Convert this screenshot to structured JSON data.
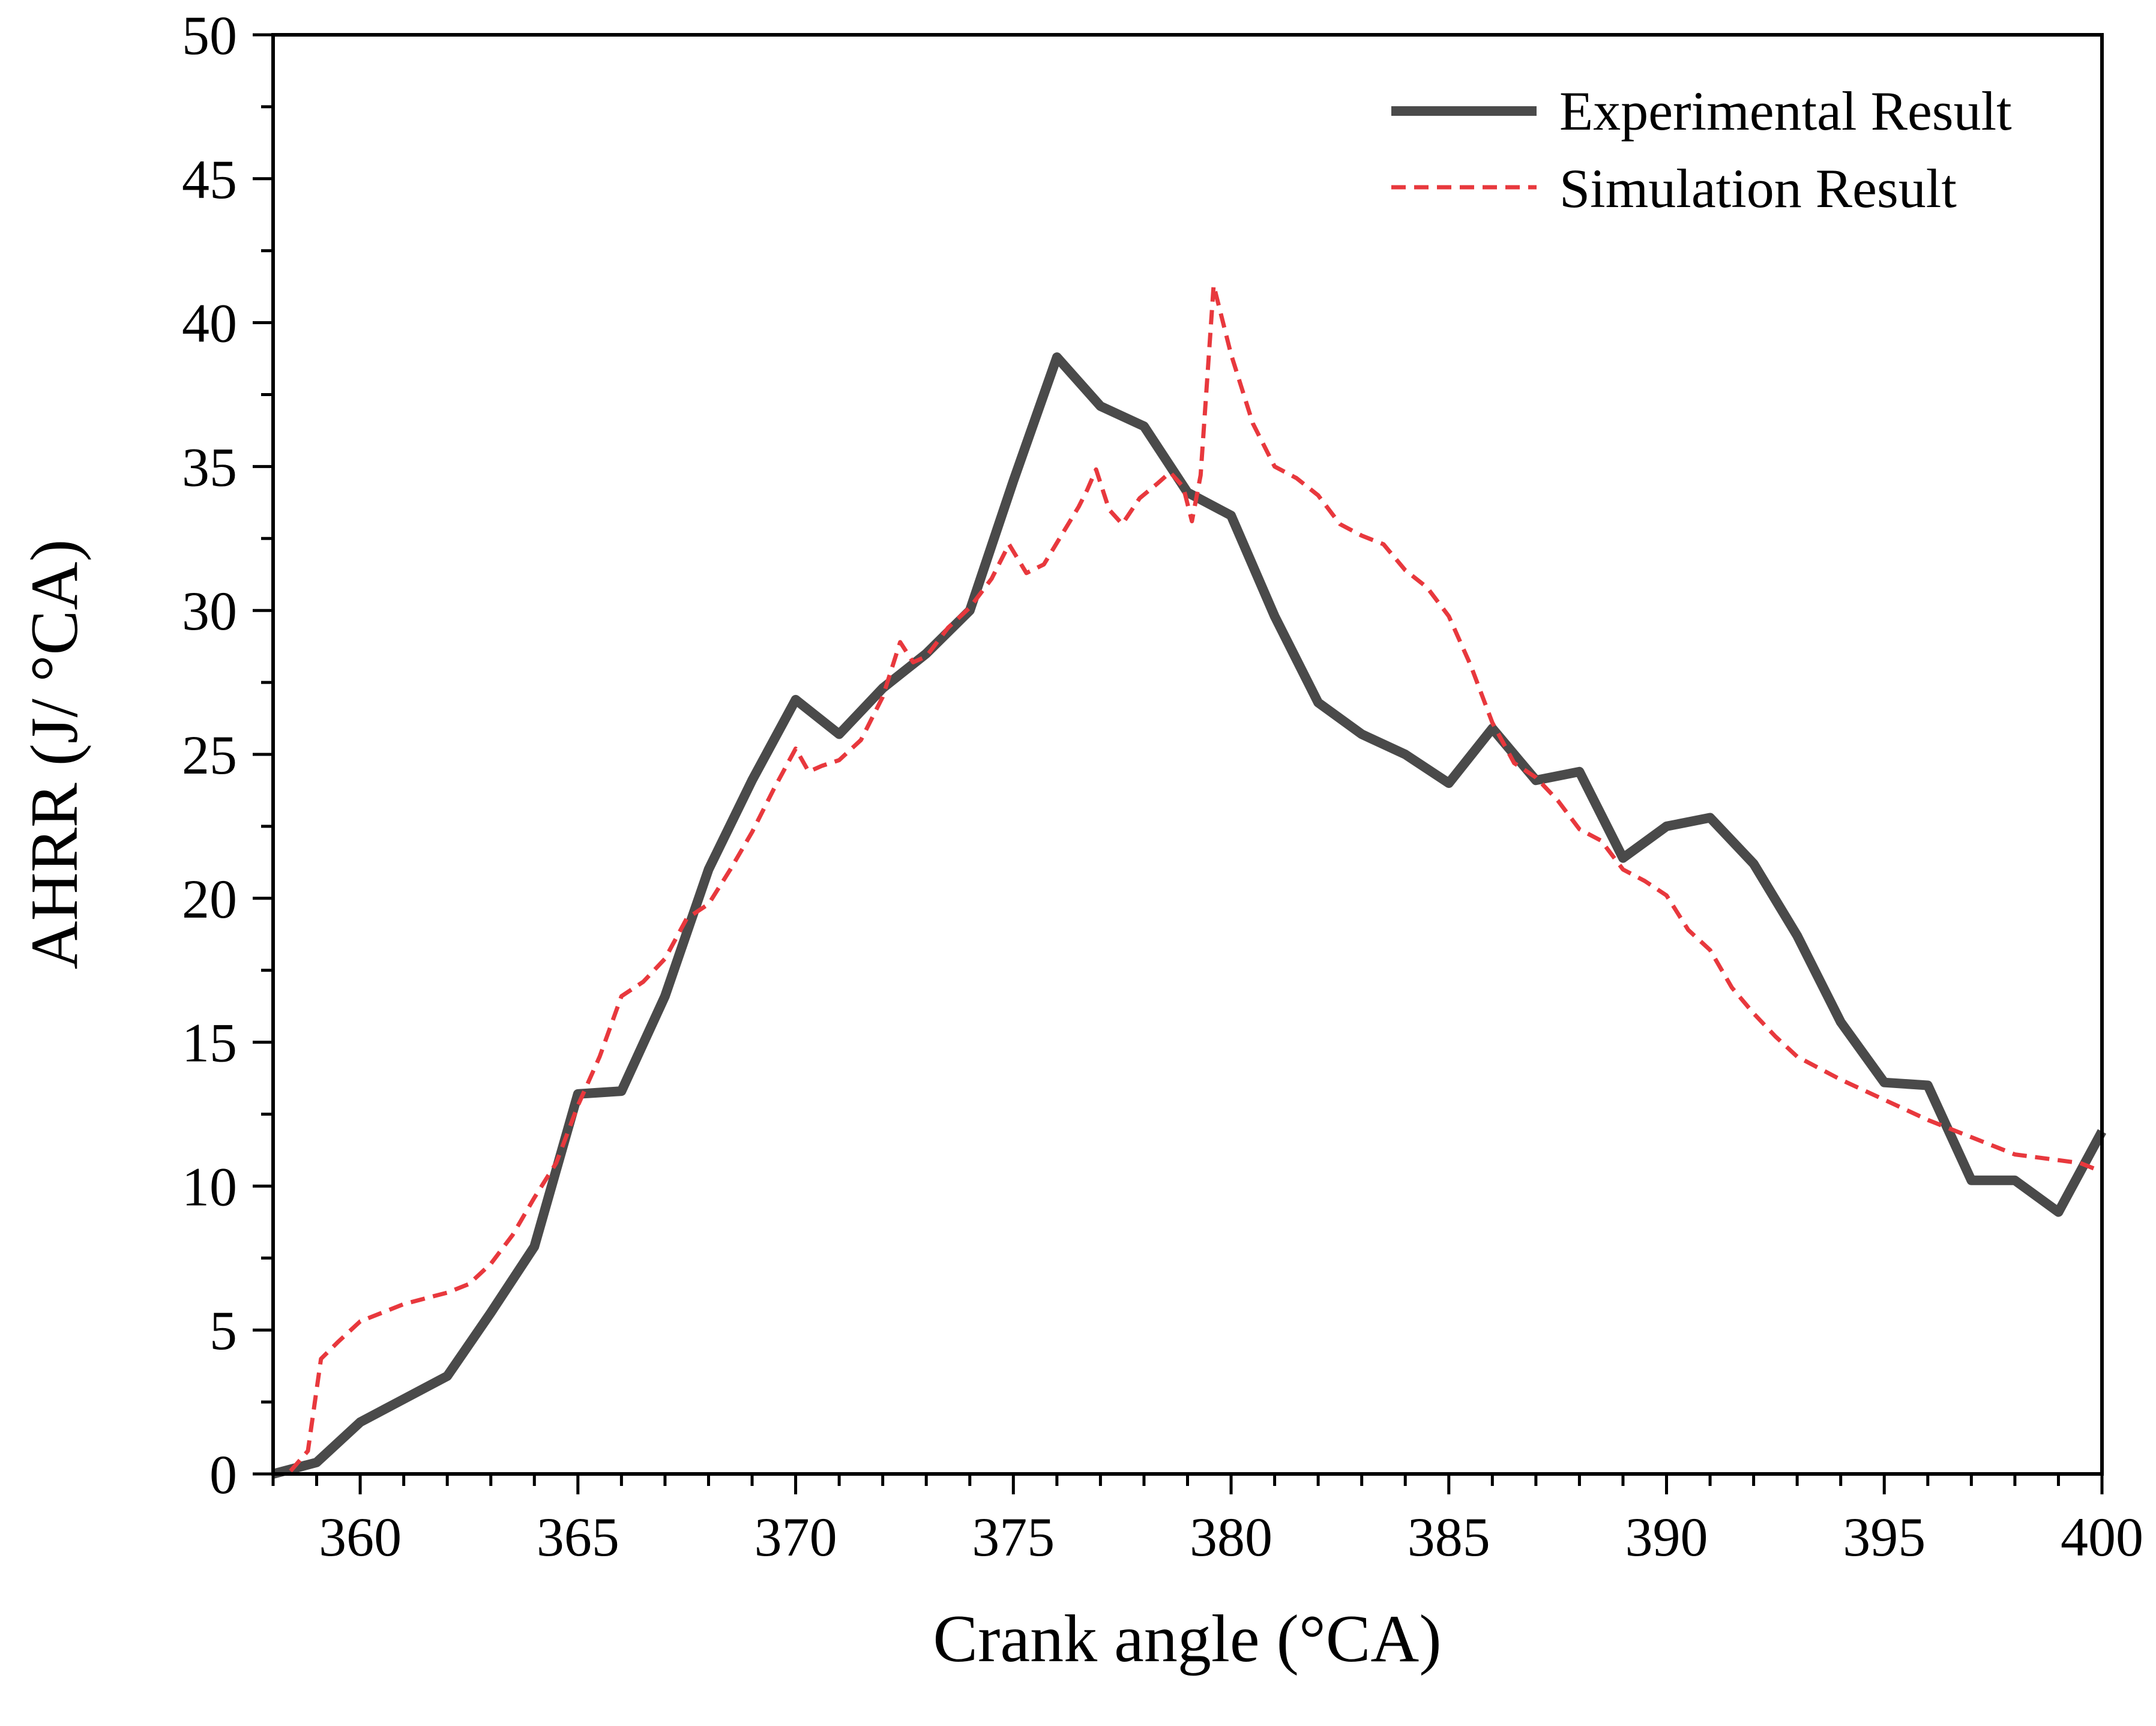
{
  "chart_data": {
    "type": "line",
    "title": "",
    "xlabel": "Crank angle (°CA)",
    "ylabel": "AHRR (J/ °CA)",
    "xlim": [
      358,
      400
    ],
    "ylim": [
      0,
      50
    ],
    "x_ticks": [
      360,
      365,
      370,
      375,
      380,
      385,
      390,
      395,
      400
    ],
    "y_ticks": [
      0,
      5,
      10,
      15,
      20,
      25,
      30,
      35,
      40,
      45,
      50
    ],
    "x_tick_labels": [
      "360",
      "365",
      "370",
      "375",
      "380",
      "385",
      "390",
      "395",
      "400"
    ],
    "y_tick_labels": [
      "0",
      "5",
      "10",
      "15",
      "20",
      "25",
      "30",
      "35",
      "40",
      "45",
      "50"
    ],
    "legend_position": "top-right",
    "grid": false,
    "series": [
      {
        "name": "Experimental Result",
        "color": "#4a4a4a",
        "style": "solid",
        "x": [
          358,
          359,
          360,
          361,
          362,
          363,
          364,
          365,
          366,
          367,
          368,
          369,
          370,
          371,
          372,
          373,
          374,
          375,
          376,
          377,
          378,
          379,
          380,
          381,
          382,
          383,
          384,
          385,
          386,
          387,
          388,
          389,
          390,
          391,
          392,
          393,
          394,
          395,
          396,
          397,
          398,
          399,
          400
        ],
        "y": [
          0,
          0.4,
          1.8,
          2.6,
          3.4,
          5.6,
          7.9,
          13.2,
          13.3,
          16.6,
          21.0,
          24.1,
          26.9,
          25.7,
          27.3,
          28.5,
          30.0,
          34.5,
          38.8,
          37.1,
          36.4,
          34.1,
          33.3,
          29.8,
          26.8,
          25.7,
          25.0,
          24.0,
          25.9,
          24.1,
          24.4,
          21.4,
          22.5,
          22.8,
          21.2,
          18.7,
          15.7,
          13.6,
          13.5,
          10.2,
          10.2,
          9.1,
          11.9
        ]
      },
      {
        "name": "Simulation Result",
        "color": "#e8383d",
        "style": "dashed",
        "x": [
          358.4,
          358.8,
          359.1,
          359.5,
          360,
          360.5,
          361,
          361.5,
          362,
          362.5,
          363,
          363.5,
          364,
          364.5,
          365,
          365.5,
          366,
          366.5,
          367,
          367.5,
          368,
          368.5,
          369,
          369.5,
          370,
          370.3,
          370.6,
          371,
          371.5,
          372,
          372.4,
          372.7,
          373,
          373.5,
          374,
          374.5,
          374.9,
          375.3,
          375.7,
          376.1,
          376.5,
          376.7,
          376.9,
          377.2,
          377.5,
          377.9,
          378.3,
          378.6,
          378.9,
          379.1,
          379.3,
          379.6,
          380,
          380.5,
          381,
          381.5,
          382,
          382.5,
          383,
          383.5,
          384,
          384.5,
          385,
          385.5,
          386,
          386.5,
          387,
          387.5,
          388,
          388.5,
          389,
          389.5,
          390,
          390.5,
          391,
          391.5,
          392,
          392.5,
          393,
          393.5,
          394,
          395,
          396,
          397,
          398,
          399,
          399.5,
          400
        ],
        "y": [
          0.1,
          0.8,
          4.0,
          4.6,
          5.3,
          5.6,
          5.9,
          6.1,
          6.3,
          6.6,
          7.3,
          8.3,
          9.6,
          10.8,
          12.8,
          14.5,
          16.6,
          17.1,
          17.9,
          19.3,
          19.8,
          21.0,
          22.3,
          23.8,
          25.2,
          24.4,
          24.6,
          24.8,
          25.5,
          27.0,
          28.9,
          28.2,
          28.4,
          29.4,
          30.1,
          31.1,
          32.3,
          31.3,
          31.6,
          32.6,
          33.6,
          34.2,
          34.9,
          33.5,
          33.0,
          33.9,
          34.4,
          34.8,
          34.3,
          33.1,
          34.7,
          41.3,
          38.9,
          36.5,
          35.0,
          34.6,
          34.0,
          33.0,
          32.6,
          32.3,
          31.4,
          30.8,
          29.8,
          28.1,
          26.1,
          24.7,
          24.2,
          23.4,
          22.4,
          22.0,
          21.0,
          20.6,
          20.1,
          18.9,
          18.2,
          16.9,
          16.0,
          15.2,
          14.5,
          14.1,
          13.7,
          13.0,
          12.3,
          11.7,
          11.1,
          10.9,
          10.8,
          10.5
        ]
      }
    ]
  }
}
